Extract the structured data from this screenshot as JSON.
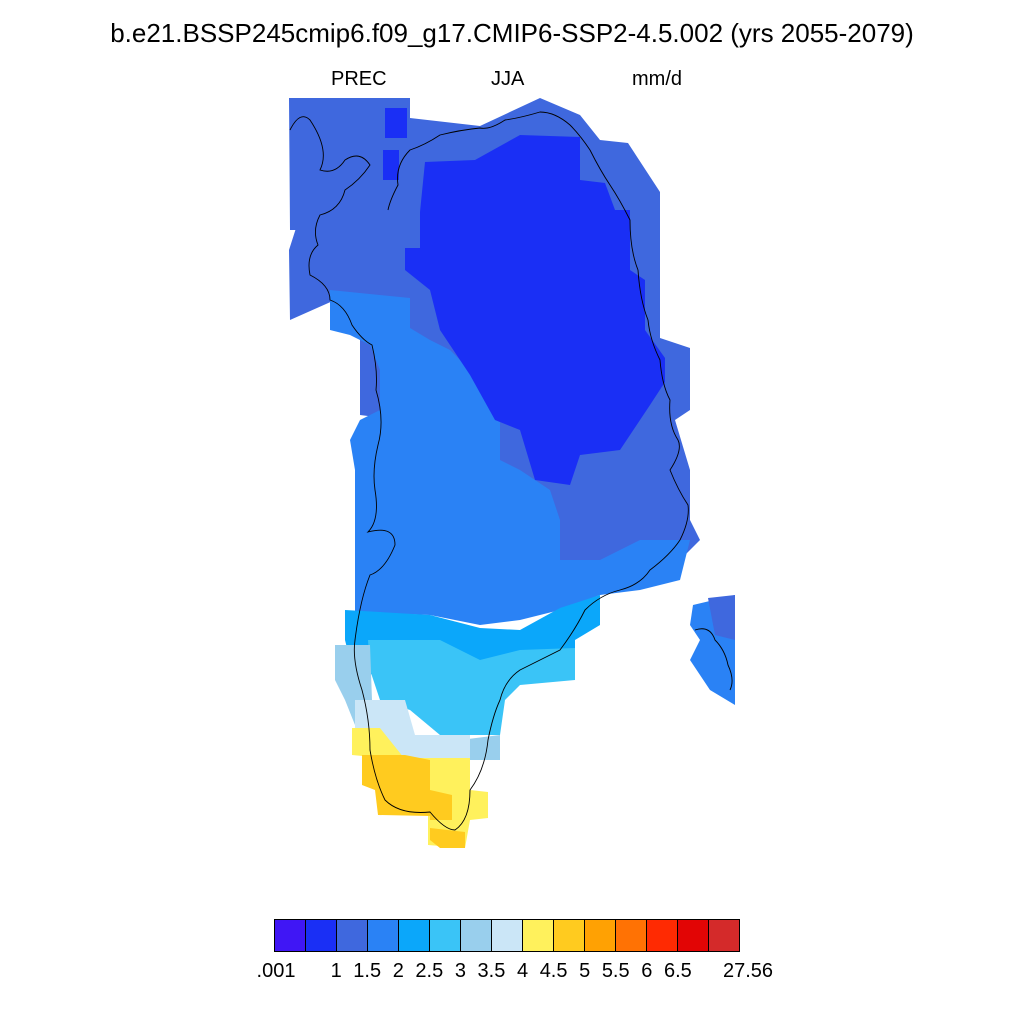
{
  "title": "b.e21.BSSP245cmip6.f09_g17.CMIP6-SSP2-4.5.002 (yrs 2055-2079)",
  "variable": "PREC",
  "season": "JJA",
  "units": "mm/d",
  "colorbar": {
    "colors": [
      "#4016f5",
      "#1a2ff5",
      "#3f68de",
      "#2a82f5",
      "#0ba7fa",
      "#3ac4f7",
      "#99cfed",
      "#cbe6f7",
      "#fff15c",
      "#ffcb1f",
      "#ffa103",
      "#ff7204",
      "#ff2a02",
      "#e20505",
      "#d42a2a"
    ],
    "labels": [
      ".001",
      "1",
      "1.5",
      "2",
      "2.5",
      "3",
      "3.5",
      "4",
      "4.5",
      "5",
      "5.5",
      "6",
      "6.5",
      "27.56"
    ]
  }
}
